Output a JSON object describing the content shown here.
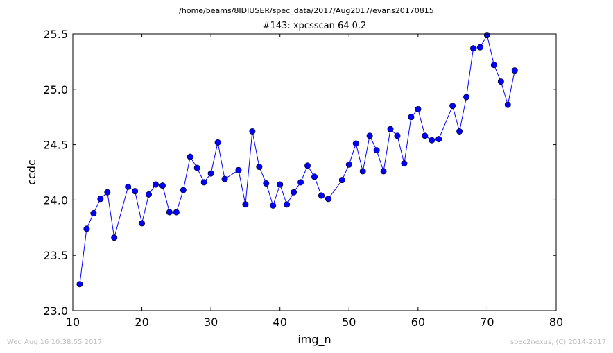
{
  "suptitle": "/home/beams/8IDIUSER/spec_data/2017/Aug2017/evans20170815",
  "footer": {
    "left": "Wed Aug 16 10:38:55 2017",
    "right": "spec2nexus, (C) 2014-2017"
  },
  "chart_data": {
    "type": "line",
    "title": "#143: xpcsscan 64 0.2",
    "xlabel": "img_n",
    "ylabel": "ccdc",
    "xlim": [
      10,
      80
    ],
    "ylim": [
      23.0,
      25.5
    ],
    "xticks": [
      "10",
      "20",
      "30",
      "40",
      "50",
      "60",
      "70",
      "80"
    ],
    "yticks": [
      "23.0",
      "23.5",
      "24.0",
      "24.5",
      "25.0",
      "25.5"
    ],
    "grid": false,
    "marker": "circle",
    "color": "#0000ff",
    "series": [
      {
        "x": [
          11,
          12,
          13,
          14,
          15,
          16,
          18,
          19,
          20,
          21,
          22,
          23,
          24,
          25,
          26,
          27,
          28,
          29,
          30,
          31,
          32,
          34,
          35,
          36,
          37,
          38,
          39,
          40,
          41,
          42,
          43,
          44,
          45,
          46,
          47,
          49,
          50,
          51,
          52,
          53,
          54,
          55,
          56,
          57,
          58,
          59,
          60,
          61,
          62,
          63,
          65,
          66,
          67,
          68,
          69,
          70,
          71,
          72,
          73,
          74
        ],
        "y": [
          23.24,
          23.74,
          23.88,
          24.01,
          24.07,
          23.66,
          24.12,
          24.08,
          23.79,
          24.05,
          24.14,
          24.13,
          23.89,
          23.89,
          24.09,
          24.39,
          24.29,
          24.16,
          24.24,
          24.52,
          24.19,
          24.27,
          23.96,
          24.62,
          24.3,
          24.15,
          23.95,
          24.14,
          23.96,
          24.07,
          24.16,
          24.31,
          24.21,
          24.04,
          24.01,
          24.18,
          24.32,
          24.51,
          24.26,
          24.58,
          24.45,
          24.26,
          24.64,
          24.58,
          24.33,
          24.75,
          24.82,
          24.58,
          24.54,
          24.55,
          24.85,
          24.62,
          24.93,
          25.37,
          25.38,
          25.49,
          25.22,
          25.07,
          24.86,
          25.17
        ]
      }
    ]
  }
}
